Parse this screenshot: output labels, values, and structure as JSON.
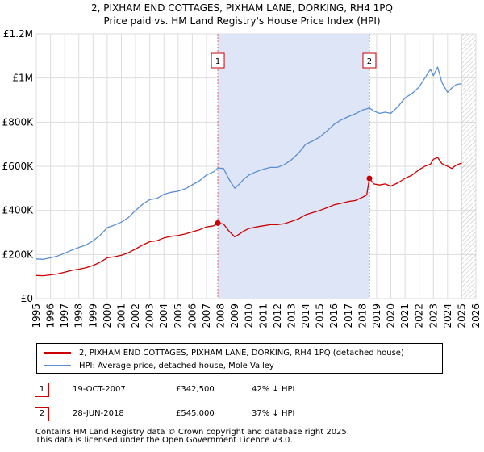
{
  "title_line1": "2, PIXHAM END COTTAGES, PIXHAM LANE, DORKING, RH4 1PQ",
  "title_line2": "Price paid vs. HM Land Registry's House Price Index (HPI)",
  "legend": {
    "property_label": "2, PIXHAM END COTTAGES, PIXHAM LANE, DORKING, RH4 1PQ (detached house)",
    "hpi_label": "HPI: Average price, detached house, Mole Valley"
  },
  "transactions": [
    {
      "num": "1",
      "date": "19-OCT-2007",
      "price": "£342,500",
      "hpi": "42% ↓ HPI"
    },
    {
      "num": "2",
      "date": "28-JUN-2018",
      "price": "£545,000",
      "hpi": "37% ↓ HPI"
    }
  ],
  "footer_line1": "Contains HM Land Registry data © Crown copyright and database right 2025.",
  "footer_line2": "This data is licensed under the Open Government Licence v3.0.",
  "colors": {
    "property": "#cc0000",
    "hpi": "#5b8fd0",
    "shade": "#dde5f7",
    "grid": "#dddddd",
    "marker_vline": "#e06060"
  },
  "chart_data": {
    "type": "line",
    "title": "Price paid vs. HM Land Registry's House Price Index (HPI)",
    "xlabel": "",
    "ylabel": "",
    "xlim": [
      1995.0,
      2026.0
    ],
    "ylim": [
      0,
      1200000
    ],
    "y_ticks": [
      0,
      200000,
      400000,
      600000,
      800000,
      1000000,
      1200000
    ],
    "y_tick_labels": [
      "£0",
      "£200K",
      "£400K",
      "£600K",
      "£800K",
      "£1M",
      "£1.2M"
    ],
    "x_ticks": [
      "1995",
      "1996",
      "1997",
      "1998",
      "1999",
      "2000",
      "2001",
      "2002",
      "2003",
      "2004",
      "2005",
      "2006",
      "2007",
      "2008",
      "2009",
      "2010",
      "2011",
      "2012",
      "2013",
      "2014",
      "2015",
      "2016",
      "2017",
      "2018",
      "2019",
      "2020",
      "2021",
      "2022",
      "2023",
      "2024",
      "2025",
      "2026"
    ],
    "grid": true,
    "shaded_range": [
      2007.8,
      2018.49
    ],
    "future_hatch_from": 2025.0,
    "markers": [
      {
        "label": "1",
        "x": 2007.8,
        "y": 342500
      },
      {
        "label": "2",
        "x": 2018.49,
        "y": 545000
      }
    ],
    "series": [
      {
        "name": "2, PIXHAM END COTTAGES, PIXHAM LANE, DORKING, RH4 1PQ (detached house)",
        "color": "#cc0000",
        "x": [
          1995.0,
          1995.5,
          1996.0,
          1996.5,
          1997.0,
          1997.5,
          1998.0,
          1998.5,
          1999.0,
          1999.5,
          2000.0,
          2000.5,
          2001.0,
          2001.5,
          2002.0,
          2002.5,
          2003.0,
          2003.5,
          2004.0,
          2004.5,
          2005.0,
          2005.5,
          2006.0,
          2006.5,
          2007.0,
          2007.5,
          2007.8,
          2008.2,
          2008.6,
          2009.0,
          2009.3,
          2009.6,
          2010.0,
          2010.5,
          2011.0,
          2011.5,
          2012.0,
          2012.5,
          2013.0,
          2013.5,
          2014.0,
          2014.5,
          2015.0,
          2015.5,
          2016.0,
          2016.5,
          2017.0,
          2017.5,
          2018.0,
          2018.3,
          2018.49,
          2018.8,
          2019.2,
          2019.6,
          2020.0,
          2020.5,
          2021.0,
          2021.5,
          2022.0,
          2022.4,
          2022.8,
          2023.0,
          2023.3,
          2023.6,
          2024.0,
          2024.3,
          2024.6,
          2025.0
        ],
        "values": [
          105000,
          104000,
          108000,
          112000,
          120000,
          128000,
          133000,
          140000,
          150000,
          165000,
          185000,
          190000,
          197000,
          208000,
          225000,
          243000,
          258000,
          262000,
          275000,
          282000,
          286000,
          293000,
          303000,
          312000,
          325000,
          330000,
          342500,
          338000,
          305000,
          280000,
          292000,
          305000,
          318000,
          325000,
          330000,
          335000,
          335000,
          340000,
          350000,
          362000,
          380000,
          390000,
          400000,
          412000,
          425000,
          432000,
          440000,
          445000,
          460000,
          470000,
          545000,
          520000,
          515000,
          520000,
          510000,
          525000,
          545000,
          560000,
          585000,
          600000,
          610000,
          632000,
          640000,
          612000,
          600000,
          590000,
          605000,
          615000
        ]
      },
      {
        "name": "HPI: Average price, detached house, Mole Valley",
        "color": "#5b8fd0",
        "x": [
          1995.0,
          1995.5,
          1996.0,
          1996.5,
          1997.0,
          1997.5,
          1998.0,
          1998.5,
          1999.0,
          1999.5,
          2000.0,
          2000.5,
          2001.0,
          2001.5,
          2002.0,
          2002.5,
          2003.0,
          2003.5,
          2004.0,
          2004.5,
          2005.0,
          2005.5,
          2006.0,
          2006.5,
          2007.0,
          2007.5,
          2007.8,
          2008.2,
          2008.6,
          2009.0,
          2009.3,
          2009.6,
          2010.0,
          2010.5,
          2011.0,
          2011.5,
          2012.0,
          2012.5,
          2013.0,
          2013.5,
          2014.0,
          2014.5,
          2015.0,
          2015.5,
          2016.0,
          2016.5,
          2017.0,
          2017.5,
          2018.0,
          2018.3,
          2018.49,
          2018.8,
          2019.2,
          2019.6,
          2020.0,
          2020.5,
          2021.0,
          2021.5,
          2022.0,
          2022.4,
          2022.8,
          2023.0,
          2023.3,
          2023.6,
          2024.0,
          2024.3,
          2024.6,
          2025.0
        ],
        "values": [
          180000,
          178000,
          185000,
          193000,
          206000,
          220000,
          232000,
          243000,
          262000,
          287000,
          322000,
          333000,
          347000,
          368000,
          400000,
          428000,
          449000,
          454000,
          473000,
          482000,
          487000,
          498000,
          516000,
          534000,
          560000,
          575000,
          592000,
          590000,
          540000,
          500000,
          518000,
          540000,
          560000,
          575000,
          586000,
          595000,
          595000,
          608000,
          630000,
          660000,
          700000,
          715000,
          733000,
          760000,
          790000,
          810000,
          825000,
          838000,
          855000,
          860000,
          865000,
          850000,
          840000,
          845000,
          840000,
          870000,
          910000,
          930000,
          960000,
          1000000,
          1040000,
          1010000,
          1050000,
          980000,
          935000,
          955000,
          970000,
          975000
        ]
      }
    ]
  }
}
